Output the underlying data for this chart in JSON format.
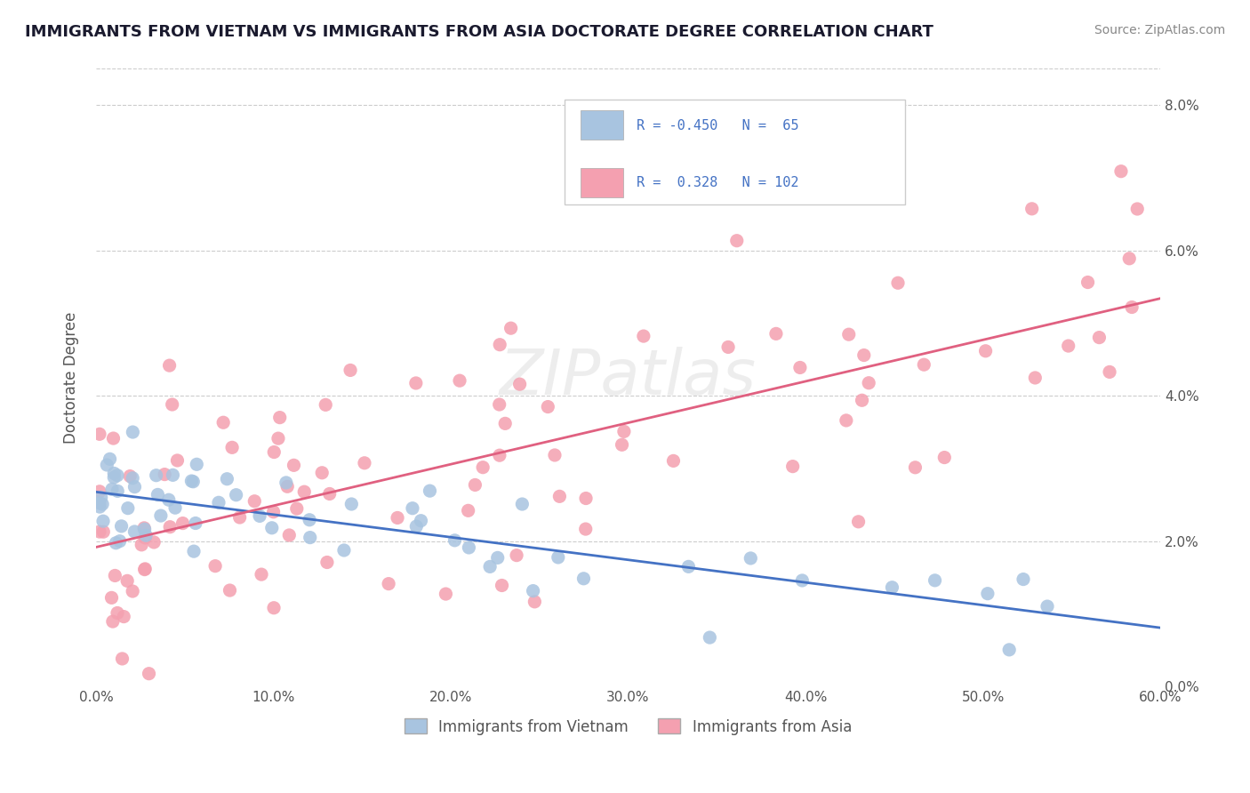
{
  "title": "IMMIGRANTS FROM VIETNAM VS IMMIGRANTS FROM ASIA DOCTORATE DEGREE CORRELATION CHART",
  "source": "Source: ZipAtlas.com",
  "ylabel": "Doctorate Degree",
  "xmin": 0.0,
  "xmax": 0.6,
  "ymin": 0.0,
  "ymax": 0.085,
  "legend_r1": "R = -0.450",
  "legend_n1": "N =  65",
  "legend_r2": "R =  0.328",
  "legend_n2": "N = 102",
  "color_vietnam": "#a8c4e0",
  "color_asia": "#f4a0b0",
  "line_color_vietnam": "#4472c4",
  "line_color_asia": "#e06080",
  "background_color": "#ffffff",
  "watermark": "ZIPatlas"
}
